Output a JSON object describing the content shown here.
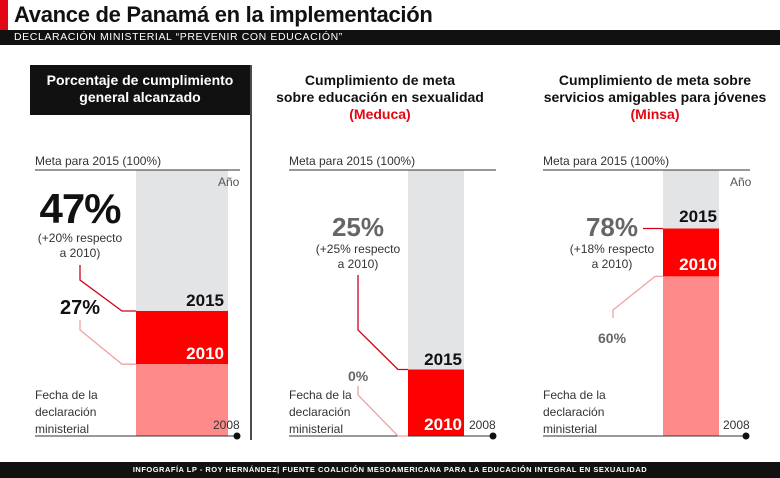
{
  "header": {
    "title": "Avance de Panamá en la implementación",
    "subtitle": "DECLARACIÓN MINISTERIAL “PREVENIR CON EDUCACIÓN”"
  },
  "footer": {
    "credit": "INFOGRAFÍA LP - ROY HERNÁNDEZ| FUENTE COALICIÓN MESOAMERICANA PARA LA EDUCACIÓN INTEGRAL EN SEXUALIDAD"
  },
  "colors": {
    "accent": "#e30613",
    "bar_2015": "#ff0000",
    "bar_2010": "#ff8a8a",
    "goal": "#e3e4e6",
    "band": "#111111"
  },
  "chart_data": [
    {
      "type": "bar",
      "title_lines": [
        "Porcentaje de cumplimiento",
        "general alcanzado"
      ],
      "title_highlight": "",
      "goal_label": "Meta para 2015 (100%)",
      "axis_label": "Año",
      "start_label": [
        "Fecha de la",
        "declaración",
        "ministerial"
      ],
      "start_year": "2008",
      "ylim": [
        0,
        100
      ],
      "categories": [
        "2010",
        "2015"
      ],
      "values": [
        27,
        47
      ],
      "value_labels": {
        "2015": "47%",
        "2010": "27%"
      },
      "change_label": [
        "(+20% respecto",
        "a 2010)"
      ]
    },
    {
      "type": "bar",
      "title_lines": [
        "Cumplimiento de meta",
        "sobre educación en sexualidad"
      ],
      "title_highlight": "(Meduca)",
      "goal_label": "Meta para 2015 (100%)",
      "axis_label": "",
      "start_label": [
        "Fecha de la",
        "declaración",
        "ministerial"
      ],
      "start_year": "2008",
      "ylim": [
        0,
        100
      ],
      "categories": [
        "2010",
        "2015"
      ],
      "values": [
        0,
        25
      ],
      "value_labels": {
        "2015": "25%",
        "2010": "0%"
      },
      "change_label": [
        "(+25% respecto",
        "a 2010)"
      ]
    },
    {
      "type": "bar",
      "title_lines": [
        "Cumplimiento de meta sobre",
        "servicios amigables para jóvenes"
      ],
      "title_highlight": "(Minsa)",
      "goal_label": "Meta para 2015 (100%)",
      "axis_label": "Año",
      "start_label": [
        "Fecha de la",
        "declaración",
        "ministerial"
      ],
      "start_year": "2008",
      "ylim": [
        0,
        100
      ],
      "categories": [
        "2010",
        "2015"
      ],
      "values": [
        60,
        78
      ],
      "value_labels": {
        "2015": "78%",
        "2010": "60%"
      },
      "change_label": [
        "(+18% respecto",
        "a 2010)"
      ]
    }
  ]
}
